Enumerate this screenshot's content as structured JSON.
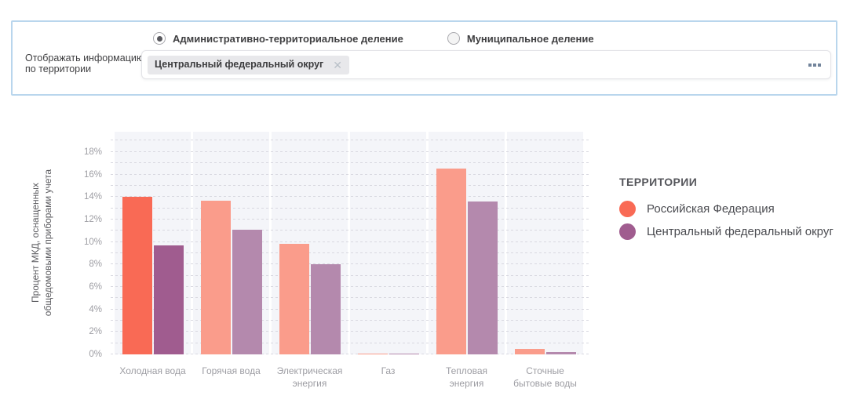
{
  "filter_panel": {
    "radio_group": {
      "options": [
        {
          "label": "Административно-территориальное деление",
          "selected": true
        },
        {
          "label": "Муниципальное деление",
          "selected": false
        }
      ]
    },
    "territory_field": {
      "label": "Отображать информацию\nпо территории",
      "chip": "Центральный федеральный округ",
      "chip_close_icon": "✕",
      "more_options_icon": "ellipsis-squares"
    },
    "border_color": "#b9d6ed"
  },
  "chart_data": {
    "type": "bar",
    "title": "",
    "categories": [
      "Холодная вода",
      "Горячая вода",
      "Электрическая\nэнергия",
      "Газ",
      "Тепловая\nэнергия",
      "Сточные\nбытовые воды"
    ],
    "series": [
      {
        "name": "Российская Федерация",
        "color": "#f96a55",
        "faded_color": "#fa9c8b",
        "values": [
          14.0,
          13.7,
          9.8,
          0.1,
          16.5,
          0.5
        ]
      },
      {
        "name": "Центральный федеральный округ",
        "color": "#a05c8f",
        "faded_color": "#b489ad",
        "values": [
          9.7,
          11.1,
          8.0,
          0.1,
          13.6,
          0.2
        ]
      }
    ],
    "highlighted_category_index": 0,
    "highlighted_category": "Холодная вода",
    "ylabel": "Процент МКД, оснащенных\nобщедомовыми приборами учета",
    "xlabel": "",
    "ylim": [
      0,
      19.8
    ],
    "ytick_step": 2,
    "ytick_labels": [
      "0%",
      "2%",
      "4%",
      "6%",
      "8%",
      "10%",
      "12%",
      "14%",
      "16%",
      "18%"
    ],
    "grid": {
      "horizontal": true,
      "step_pct": 1,
      "style": "dashed"
    },
    "plot_band_color": "#f4f5f9",
    "legend": {
      "title": "ТЕРРИТОРИИ",
      "position": "right"
    }
  }
}
